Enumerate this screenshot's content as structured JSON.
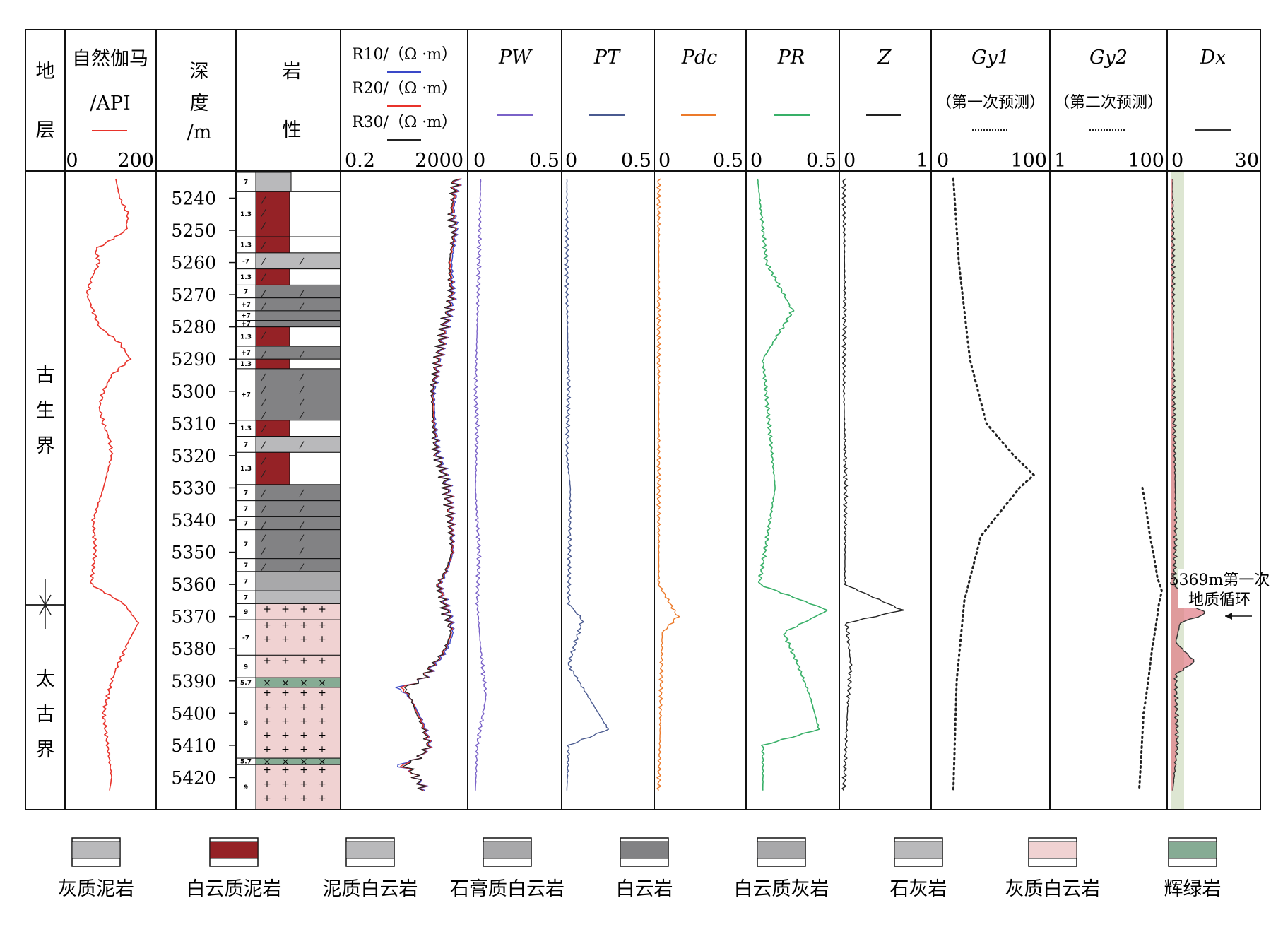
{
  "colors": {
    "gamma": "#e8332b",
    "r10": "#3a48c8",
    "r20": "#e8332b",
    "r30": "#222222",
    "pw": "#7a62c8",
    "pt": "#4a5a90",
    "pdc": "#ec7a2a",
    "pr": "#38b068",
    "z": "#222222",
    "dx": "#333333",
    "dx_fill": "#e07a84",
    "dx_band": "#dde6d2",
    "gray_light": "#b9b9bb",
    "gray_mid": "#a8a8aa",
    "gray_dark": "#828284",
    "dolomitic_mudstone": "#952226",
    "granite_pink": "#f0d2d2",
    "diabase": "#86ab94"
  },
  "headers": {
    "strata": [
      "地",
      "层"
    ],
    "gamma": [
      "自然伽马",
      "/API"
    ],
    "depth": [
      "深",
      "度",
      "/m"
    ],
    "lithology": [
      "岩",
      "性"
    ],
    "resistivity": [
      "R10/（Ω ·m）",
      "R20/（Ω ·m）",
      "R30/（Ω ·m）"
    ],
    "pw": "PW",
    "pt": "PT",
    "pdc": "Pdc",
    "pr": "PR",
    "z": "Z",
    "gy1": [
      "Gy1",
      "（第一次预测）"
    ],
    "gy2": [
      "Gy2",
      "（第二次预测）"
    ],
    "dx": "Dx"
  },
  "scales": {
    "gamma": [
      "0",
      "200"
    ],
    "resistivity": [
      "0.2",
      "2000"
    ],
    "pw": [
      "0",
      "0.5"
    ],
    "pt": [
      "0",
      "0.5"
    ],
    "pdc": [
      "0",
      "0.5"
    ],
    "pr": [
      "0",
      "0.5"
    ],
    "z": [
      "0",
      "1"
    ],
    "gy1": [
      "0",
      "100"
    ],
    "gy2": [
      "1",
      "100"
    ],
    "dx": [
      "0",
      "30"
    ]
  },
  "strata": {
    "upper": [
      "古",
      "生",
      "界"
    ],
    "lower": [
      "太",
      "古",
      "界"
    ]
  },
  "depth_ticks": [
    "5240",
    "5250",
    "5260",
    "5270",
    "5280",
    "5290",
    "5300",
    "5310",
    "5320",
    "5330",
    "5340",
    "5350",
    "5360",
    "5370",
    "5380",
    "5390",
    "5400",
    "5410",
    "5420"
  ],
  "annotation": "5369m第一次地质循环",
  "annotation_lines": [
    "5369m第一次",
    "地质循环"
  ],
  "legend": [
    "灰质泥岩",
    "白云质泥岩",
    "泥质白云岩",
    "石膏质白云岩",
    "白云岩",
    "白云质灰岩",
    "石灰岩",
    "灰质白云岩",
    "辉绿岩"
  ],
  "lithology_codes": [
    "7",
    "1.3",
    "1.3",
    "-7",
    "1.3",
    "7",
    "+7",
    "+7",
    "+7",
    "1.3",
    "+7",
    "1.3",
    "+7",
    "1.3",
    "7",
    "1.3",
    "7",
    "7",
    "7",
    "7",
    "7",
    "7",
    "7",
    "9",
    "-7",
    "9",
    "5.7",
    "9",
    "5.7",
    "9"
  ],
  "chart_data": {
    "type": "line",
    "x_axis": "depth (m)",
    "depth_range": [
      5232,
      5430
    ],
    "boundary_depth": 5366,
    "series": [
      {
        "name": "自然伽马",
        "unit": "API",
        "range": [
          0,
          200
        ],
        "points": [
          [
            5234,
            110
          ],
          [
            5240,
            120
          ],
          [
            5245,
            140
          ],
          [
            5250,
            135
          ],
          [
            5256,
            60
          ],
          [
            5260,
            70
          ],
          [
            5265,
            50
          ],
          [
            5270,
            40
          ],
          [
            5275,
            55
          ],
          [
            5280,
            70
          ],
          [
            5285,
            120
          ],
          [
            5290,
            145
          ],
          [
            5295,
            100
          ],
          [
            5300,
            80
          ],
          [
            5305,
            70
          ],
          [
            5310,
            80
          ],
          [
            5315,
            95
          ],
          [
            5320,
            100
          ],
          [
            5330,
            80
          ],
          [
            5340,
            55
          ],
          [
            5350,
            60
          ],
          [
            5360,
            50
          ],
          [
            5366,
            130
          ],
          [
            5372,
            165
          ],
          [
            5378,
            140
          ],
          [
            5385,
            115
          ],
          [
            5390,
            100
          ],
          [
            5400,
            80
          ],
          [
            5410,
            90
          ],
          [
            5420,
            100
          ],
          [
            5424,
            95
          ]
        ]
      },
      {
        "name": "R10",
        "range": [
          0.2,
          2000
        ],
        "scale": "log",
        "points": [
          [
            5234,
            1200
          ],
          [
            5245,
            900
          ],
          [
            5250,
            1100
          ],
          [
            5260,
            800
          ],
          [
            5270,
            900
          ],
          [
            5280,
            500
          ],
          [
            5290,
            300
          ],
          [
            5300,
            200
          ],
          [
            5310,
            220
          ],
          [
            5320,
            280
          ],
          [
            5330,
            600
          ],
          [
            5340,
            800
          ],
          [
            5350,
            900
          ],
          [
            5360,
            300
          ],
          [
            5366,
            500
          ],
          [
            5375,
            900
          ],
          [
            5385,
            200
          ],
          [
            5392,
            10
          ],
          [
            5400,
            60
          ],
          [
            5410,
            150
          ],
          [
            5416,
            10
          ],
          [
            5424,
            100
          ]
        ]
      },
      {
        "name": "R20",
        "range": [
          0.2,
          2000
        ],
        "scale": "log",
        "points": [
          [
            5234,
            1100
          ],
          [
            5245,
            800
          ],
          [
            5250,
            1000
          ],
          [
            5260,
            700
          ],
          [
            5270,
            800
          ],
          [
            5280,
            450
          ],
          [
            5290,
            280
          ],
          [
            5300,
            180
          ],
          [
            5310,
            200
          ],
          [
            5320,
            250
          ],
          [
            5330,
            550
          ],
          [
            5340,
            750
          ],
          [
            5350,
            850
          ],
          [
            5360,
            280
          ],
          [
            5366,
            450
          ],
          [
            5375,
            800
          ],
          [
            5385,
            180
          ],
          [
            5392,
            15
          ],
          [
            5400,
            55
          ],
          [
            5410,
            140
          ],
          [
            5416,
            15
          ],
          [
            5424,
            90
          ]
        ]
      },
      {
        "name": "R30",
        "range": [
          0.2,
          2000
        ],
        "scale": "log",
        "points": [
          [
            5234,
            1000
          ],
          [
            5245,
            750
          ],
          [
            5250,
            950
          ],
          [
            5260,
            650
          ],
          [
            5270,
            750
          ],
          [
            5280,
            420
          ],
          [
            5290,
            260
          ],
          [
            5300,
            170
          ],
          [
            5310,
            190
          ],
          [
            5320,
            240
          ],
          [
            5330,
            520
          ],
          [
            5340,
            700
          ],
          [
            5350,
            800
          ],
          [
            5360,
            260
          ],
          [
            5366,
            420
          ],
          [
            5375,
            750
          ],
          [
            5385,
            170
          ],
          [
            5392,
            20
          ],
          [
            5400,
            50
          ],
          [
            5410,
            130
          ],
          [
            5416,
            20
          ],
          [
            5424,
            85
          ]
        ]
      },
      {
        "name": "PW",
        "range": [
          0,
          0.5
        ],
        "points": [
          [
            5234,
            0.05
          ],
          [
            5260,
            0.04
          ],
          [
            5280,
            0.03
          ],
          [
            5300,
            0.02
          ],
          [
            5310,
            0.03
          ],
          [
            5330,
            0.02
          ],
          [
            5350,
            0.04
          ],
          [
            5366,
            0.03
          ],
          [
            5380,
            0.05
          ],
          [
            5395,
            0.08
          ],
          [
            5410,
            0.03
          ],
          [
            5424,
            0.02
          ]
        ]
      },
      {
        "name": "PT",
        "range": [
          0,
          0.5
        ],
        "points": [
          [
            5234,
            0.01
          ],
          [
            5270,
            0.01
          ],
          [
            5300,
            0.02
          ],
          [
            5320,
            0.01
          ],
          [
            5330,
            0.03
          ],
          [
            5366,
            0.02
          ],
          [
            5371,
            0.1
          ],
          [
            5385,
            0.02
          ],
          [
            5405,
            0.25
          ],
          [
            5410,
            0.02
          ],
          [
            5424,
            0.01
          ]
        ]
      },
      {
        "name": "Pdc",
        "range": [
          0,
          0.5
        ],
        "points": [
          [
            5234,
            0.01
          ],
          [
            5300,
            0.01
          ],
          [
            5360,
            0.01
          ],
          [
            5370,
            0.12
          ],
          [
            5375,
            0.03
          ],
          [
            5424,
            0.01
          ]
        ]
      },
      {
        "name": "PR",
        "range": [
          0,
          0.5
        ],
        "points": [
          [
            5234,
            0.05
          ],
          [
            5260,
            0.1
          ],
          [
            5270,
            0.2
          ],
          [
            5275,
            0.25
          ],
          [
            5290,
            0.08
          ],
          [
            5330,
            0.15
          ],
          [
            5360,
            0.06
          ],
          [
            5368,
            0.45
          ],
          [
            5375,
            0.2
          ],
          [
            5385,
            0.28
          ],
          [
            5395,
            0.35
          ],
          [
            5405,
            0.4
          ],
          [
            5410,
            0.08
          ],
          [
            5424,
            0.08
          ]
        ]
      },
      {
        "name": "Z",
        "range": [
          0,
          1
        ],
        "points": [
          [
            5234,
            0.02
          ],
          [
            5270,
            0.03
          ],
          [
            5300,
            0.02
          ],
          [
            5330,
            0.04
          ],
          [
            5360,
            0.03
          ],
          [
            5368,
            0.7
          ],
          [
            5372,
            0.05
          ],
          [
            5385,
            0.1
          ],
          [
            5400,
            0.06
          ],
          [
            5424,
            0.02
          ]
        ]
      },
      {
        "name": "Gy1",
        "range": [
          0,
          100
        ],
        "points": [
          [
            5234,
            15
          ],
          [
            5260,
            20
          ],
          [
            5290,
            30
          ],
          [
            5310,
            45
          ],
          [
            5320,
            70
          ],
          [
            5326,
            88
          ],
          [
            5330,
            75
          ],
          [
            5345,
            40
          ],
          [
            5365,
            25
          ],
          [
            5390,
            18
          ],
          [
            5424,
            15
          ]
        ]
      },
      {
        "name": "Gy2",
        "range": [
          1,
          100
        ],
        "points": [
          [
            5330,
            40
          ],
          [
            5345,
            55
          ],
          [
            5358,
            75
          ],
          [
            5362,
            90
          ],
          [
            5366,
            80
          ],
          [
            5380,
            60
          ],
          [
            5400,
            42
          ],
          [
            5424,
            35
          ]
        ]
      },
      {
        "name": "Dx",
        "range": [
          0,
          30
        ],
        "points": [
          [
            5234,
            0.5
          ],
          [
            5300,
            0.8
          ],
          [
            5340,
            1.5
          ],
          [
            5360,
            1.0
          ],
          [
            5367,
            8
          ],
          [
            5369,
            12
          ],
          [
            5372,
            3
          ],
          [
            5378,
            1.5
          ],
          [
            5384,
            8
          ],
          [
            5388,
            1.5
          ],
          [
            5410,
            2
          ],
          [
            5424,
            0.5
          ]
        ]
      }
    ]
  }
}
